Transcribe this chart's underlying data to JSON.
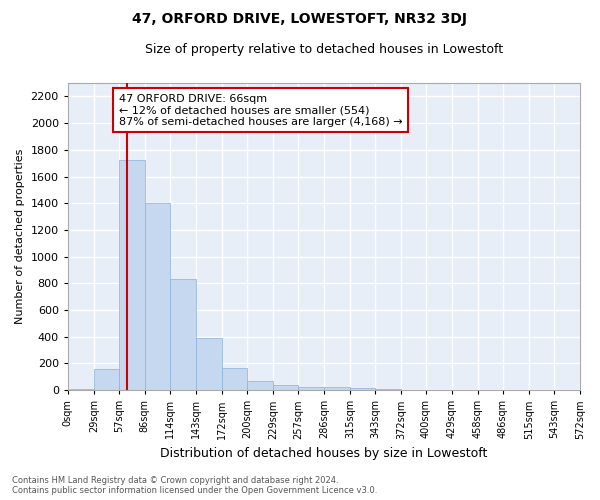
{
  "title": "47, ORFORD DRIVE, LOWESTOFT, NR32 3DJ",
  "subtitle": "Size of property relative to detached houses in Lowestoft",
  "xlabel": "Distribution of detached houses by size in Lowestoft",
  "ylabel": "Number of detached properties",
  "bar_color": "#c5d8f0",
  "bar_edge_color": "#8ab0d8",
  "background_color": "#e8eef8",
  "grid_color": "#ffffff",
  "red_line_x": 66,
  "annotation_text": "47 ORFORD DRIVE: 66sqm\n← 12% of detached houses are smaller (554)\n87% of semi-detached houses are larger (4,168) →",
  "bin_edges": [
    0,
    29,
    57,
    86,
    114,
    143,
    172,
    200,
    229,
    257,
    286,
    315,
    343,
    372,
    400,
    429,
    458,
    486,
    515,
    543,
    572
  ],
  "bar_heights": [
    10,
    155,
    1720,
    1400,
    830,
    390,
    165,
    65,
    35,
    25,
    25,
    15,
    5,
    2,
    2,
    1,
    1,
    0,
    0,
    0
  ],
  "ylim": [
    0,
    2300
  ],
  "yticks": [
    0,
    200,
    400,
    600,
    800,
    1000,
    1200,
    1400,
    1600,
    1800,
    2000,
    2200
  ],
  "footer_text": "Contains HM Land Registry data © Crown copyright and database right 2024.\nContains public sector information licensed under the Open Government Licence v3.0.",
  "figsize": [
    6.0,
    5.0
  ],
  "dpi": 100
}
